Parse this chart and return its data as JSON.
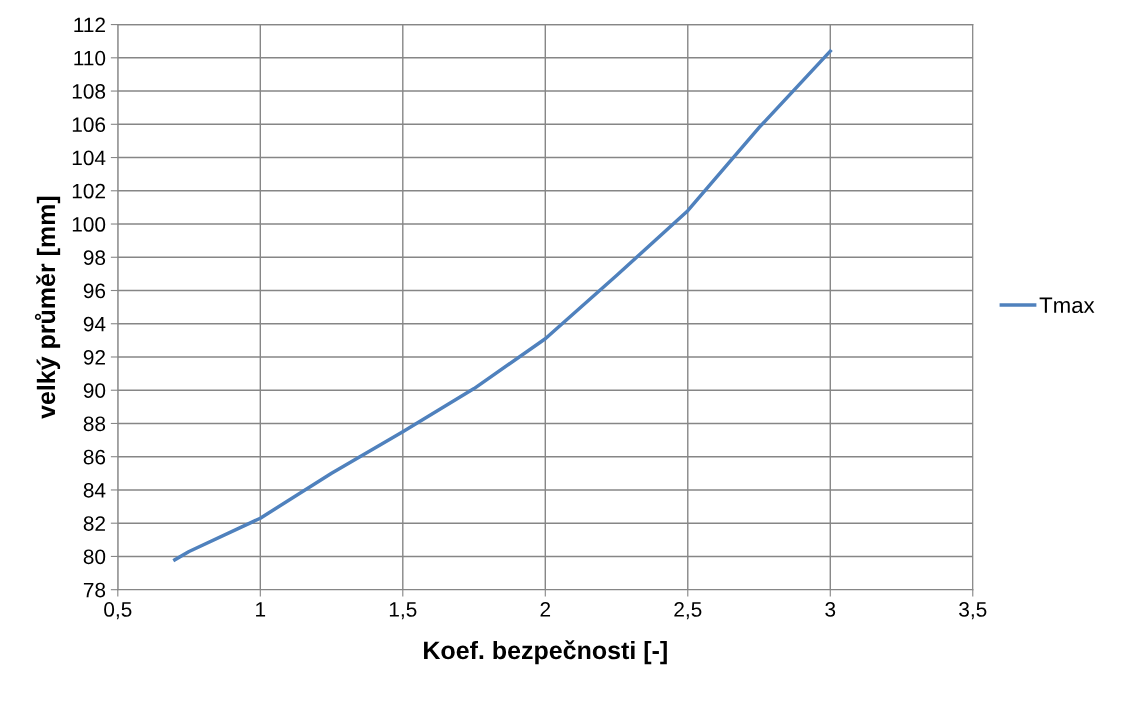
{
  "chart_data": {
    "type": "line",
    "xlabel": "Koef. bezpečnosti [-]",
    "ylabel": "velký průměr [mm]",
    "x": [
      0.7,
      0.75,
      1,
      1.25,
      1.5,
      1.75,
      2,
      2.25,
      2.5,
      2.75,
      3
    ],
    "series": [
      {
        "name": "Tmax",
        "color": "#4f81bd",
        "values": [
          79.8,
          80.3,
          82.3,
          85.0,
          87.5,
          90.1,
          93.1,
          96.9,
          100.8,
          105.8,
          110.4
        ]
      }
    ],
    "xlim": [
      0.5,
      3.5
    ],
    "xticks": [
      {
        "value": 0.5,
        "label": "0,5"
      },
      1,
      {
        "value": 1.5,
        "label": "1,5"
      },
      2,
      {
        "value": 2.5,
        "label": "2,5"
      },
      3,
      {
        "value": 3.5,
        "label": "3,5"
      }
    ],
    "ylim": [
      78,
      112
    ],
    "yticks": [
      78,
      80,
      82,
      84,
      86,
      88,
      90,
      92,
      94,
      96,
      98,
      100,
      102,
      104,
      106,
      108,
      110,
      112
    ],
    "grid": true,
    "legend": "right",
    "marker": "none",
    "line_style": "solid"
  }
}
